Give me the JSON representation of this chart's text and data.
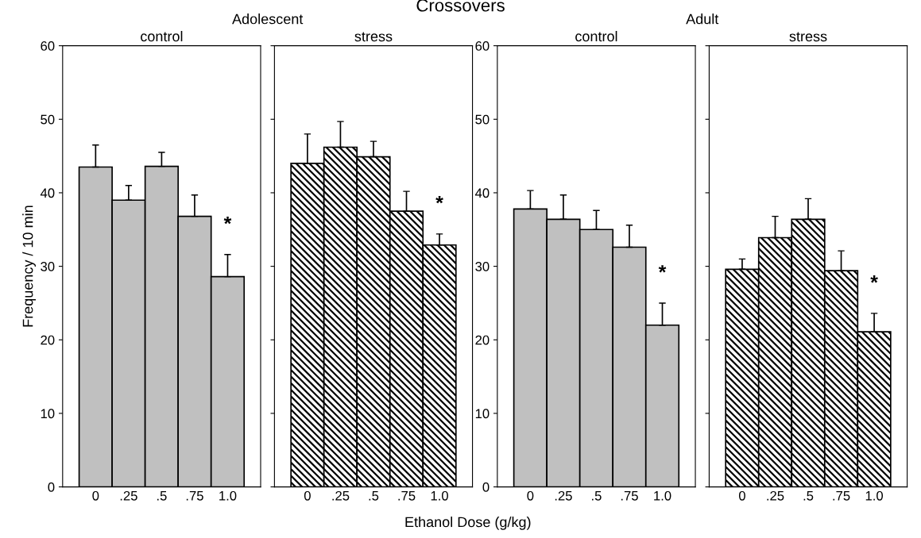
{
  "chart_data": [
    {
      "type": "bar",
      "title": "control",
      "ylabel": "Frequency / 10 min",
      "categories": [
        "0",
        ".25",
        ".5",
        ".75",
        "1.0"
      ],
      "series": [
        {
          "color": "#c0c0c0",
          "values": [
            43.5,
            39.0,
            43.6,
            36.8,
            28.6
          ],
          "errors": [
            [
              43.5,
              46.5
            ],
            [
              39.0,
              41.0
            ],
            [
              43.6,
              45.5
            ],
            [
              36.8,
              39.7
            ],
            [
              28.6,
              31.6
            ]
          ]
        }
      ],
      "ylim": [
        0,
        60
      ],
      "yticks": [
        0,
        10,
        20,
        30,
        40,
        50,
        60
      ],
      "grid": false,
      "legend": false,
      "annotations": [
        "Crossovers",
        "Adolescent",
        "*"
      ]
    },
    {
      "type": "bar",
      "title": "stress",
      "xlabel": "Ethanol Dose (g/kg)",
      "categories": [
        "0",
        ".25",
        ".5",
        ".75",
        "1.0"
      ],
      "series": [
        {
          "color": "#000000",
          "values": [
            44.0,
            46.2,
            44.9,
            37.5,
            32.9
          ],
          "errors": [
            [
              44.0,
              48.0
            ],
            [
              46.2,
              49.7
            ],
            [
              44.9,
              47.0
            ],
            [
              37.5,
              40.2
            ],
            [
              32.9,
              34.4
            ]
          ]
        }
      ],
      "ylim": [
        0,
        60
      ],
      "yticks": [
        {
          "value": 0,
          "label": null
        },
        {
          "value": 10,
          "label": null
        },
        {
          "value": 20,
          "label": null
        },
        {
          "value": 30,
          "label": null
        },
        {
          "value": 40,
          "label": null
        },
        {
          "value": 50,
          "label": null
        },
        {
          "value": 60,
          "label": null
        }
      ],
      "tick_labels": "x",
      "grid": false,
      "legend": false,
      "annotations": [
        "*"
      ]
    },
    {
      "type": "bar",
      "title": "control",
      "categories": [
        "0",
        ".25",
        ".5",
        ".75",
        "1.0"
      ],
      "series": [
        {
          "color": "#c0c0c0",
          "values": [
            37.8,
            36.4,
            35.0,
            32.6,
            22.0
          ],
          "errors": [
            [
              37.8,
              40.3
            ],
            [
              36.4,
              39.7
            ],
            [
              35.0,
              37.6
            ],
            [
              32.6,
              35.6
            ],
            [
              22.0,
              25.0
            ]
          ]
        }
      ],
      "ylim": [
        0,
        60
      ],
      "yticks": [
        0,
        10,
        20,
        30,
        40,
        50,
        60
      ],
      "grid": false,
      "legend": false,
      "annotations": [
        "Adult",
        "*"
      ]
    },
    {
      "type": "bar",
      "title": "stress",
      "categories": [
        "0",
        ".25",
        ".5",
        ".75",
        "1.0"
      ],
      "series": [
        {
          "color": "#000000",
          "values": [
            29.6,
            33.9,
            36.4,
            29.4,
            21.1
          ],
          "errors": [
            [
              29.6,
              31.0
            ],
            [
              33.9,
              36.8
            ],
            [
              36.4,
              39.2
            ],
            [
              29.4,
              32.1
            ],
            [
              21.1,
              23.6
            ]
          ]
        }
      ],
      "ylim": [
        0,
        60
      ],
      "yticks": [
        {
          "value": 0,
          "label": null
        },
        {
          "value": 10,
          "label": null
        },
        {
          "value": 20,
          "label": null
        },
        {
          "value": 30,
          "label": null
        },
        {
          "value": 40,
          "label": null
        },
        {
          "value": 50,
          "label": null
        },
        {
          "value": 60,
          "label": null
        }
      ],
      "tick_labels": "x",
      "grid": false,
      "legend": false,
      "annotations": [
        "*"
      ]
    }
  ]
}
